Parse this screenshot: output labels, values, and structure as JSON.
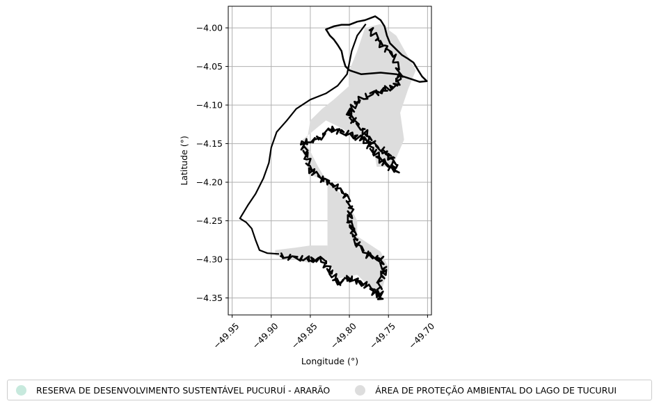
{
  "chart_data": {
    "type": "map",
    "xlabel": "Longitude (°)",
    "ylabel": "Latitude (°)",
    "xlim": [
      -49.955,
      -49.695
    ],
    "ylim": [
      -4.372,
      -3.972
    ],
    "x_ticks": [
      -49.95,
      -49.9,
      -49.85,
      -49.8,
      -49.75,
      -49.7
    ],
    "x_tick_labels": [
      "−49.95",
      "−49.90",
      "−49.85",
      "−49.80",
      "−49.75",
      "−49.70"
    ],
    "y_ticks": [
      -4.0,
      -4.05,
      -4.1,
      -4.15,
      -4.2,
      -4.25,
      -4.3,
      -4.35
    ],
    "y_tick_labels": [
      "−4.00",
      "−4.05",
      "−4.10",
      "−4.15",
      "−4.20",
      "−4.25",
      "−4.30",
      "−4.35"
    ],
    "grid": true,
    "legend_position": "bottom",
    "legend": [
      {
        "label": "RESERVA DE DESENVOLVIMENTO SUSTENTÁVEL PUCURUÍ - ARARÃO",
        "color": "#c7e9dd"
      },
      {
        "label": "ÁREA DE PROTEÇÃO AMBIENTAL DO LAGO DE TUCURUI",
        "color": "#dddddd"
      }
    ],
    "boundary_outline": [
      [
        -49.767,
        -3.985
      ],
      [
        -49.76,
        -3.99
      ],
      [
        -49.755,
        -3.998
      ],
      [
        -49.752,
        -4.01
      ],
      [
        -49.748,
        -4.02
      ],
      [
        -49.74,
        -4.028
      ],
      [
        -49.733,
        -4.035
      ],
      [
        -49.725,
        -4.04
      ],
      [
        -49.718,
        -4.045
      ],
      [
        -49.712,
        -4.055
      ],
      [
        -49.707,
        -4.063
      ],
      [
        -49.701,
        -4.069
      ],
      [
        -49.71,
        -4.07
      ],
      [
        -49.725,
        -4.065
      ],
      [
        -49.74,
        -4.06
      ],
      [
        -49.76,
        -4.058
      ],
      [
        -49.785,
        -4.06
      ],
      [
        -49.8,
        -4.055
      ],
      [
        -49.805,
        -4.05
      ],
      [
        -49.808,
        -4.04
      ],
      [
        -49.81,
        -4.03
      ],
      [
        -49.815,
        -4.022
      ],
      [
        -49.82,
        -4.015
      ],
      [
        -49.825,
        -4.01
      ],
      [
        -49.828,
        -4.005
      ],
      [
        -49.83,
        -4.002
      ],
      [
        -49.82,
        -3.998
      ],
      [
        -49.81,
        -3.996
      ],
      [
        -49.8,
        -3.996
      ],
      [
        -49.79,
        -3.992
      ],
      [
        -49.78,
        -3.99
      ],
      [
        -49.767,
        -3.985
      ]
    ],
    "reservoir_west_shore": [
      [
        -49.779,
        -3.995
      ],
      [
        -49.79,
        -4.01
      ],
      [
        -49.797,
        -4.03
      ],
      [
        -49.8,
        -4.045
      ],
      [
        -49.803,
        -4.06
      ],
      [
        -49.815,
        -4.075
      ],
      [
        -49.83,
        -4.085
      ],
      [
        -49.85,
        -4.093
      ],
      [
        -49.868,
        -4.105
      ],
      [
        -49.88,
        -4.12
      ],
      [
        -49.893,
        -4.135
      ],
      [
        -49.9,
        -4.155
      ],
      [
        -49.903,
        -4.175
      ],
      [
        -49.91,
        -4.195
      ],
      [
        -49.92,
        -4.215
      ],
      [
        -49.93,
        -4.23
      ],
      [
        -49.94,
        -4.247
      ],
      [
        -49.932,
        -4.252
      ],
      [
        -49.925,
        -4.26
      ],
      [
        -49.92,
        -4.275
      ],
      [
        -49.915,
        -4.288
      ],
      [
        -49.905,
        -4.292
      ],
      [
        -49.89,
        -4.293
      ]
    ],
    "apa_area": [
      [
        -49.8,
        -4.055
      ],
      [
        -49.79,
        -4.03
      ],
      [
        -49.78,
        -4.0
      ],
      [
        -49.76,
        -3.995
      ],
      [
        -49.74,
        -4.01
      ],
      [
        -49.715,
        -4.055
      ],
      [
        -49.725,
        -4.08
      ],
      [
        -49.735,
        -4.11
      ],
      [
        -49.73,
        -4.145
      ],
      [
        -49.745,
        -4.18
      ],
      [
        -49.765,
        -4.18
      ],
      [
        -49.77,
        -4.15
      ],
      [
        -49.795,
        -4.14
      ],
      [
        -49.81,
        -4.13
      ],
      [
        -49.83,
        -4.12
      ],
      [
        -49.86,
        -4.145
      ],
      [
        -49.86,
        -4.16
      ],
      [
        -49.85,
        -4.19
      ],
      [
        -49.828,
        -4.2
      ],
      [
        -49.805,
        -4.22
      ],
      [
        -49.79,
        -4.25
      ],
      [
        -49.79,
        -4.27
      ],
      [
        -49.76,
        -4.29
      ],
      [
        -49.75,
        -4.31
      ],
      [
        -49.76,
        -4.345
      ],
      [
        -49.775,
        -4.335
      ],
      [
        -49.79,
        -4.32
      ],
      [
        -49.815,
        -4.325
      ],
      [
        -49.828,
        -4.3
      ],
      [
        -49.828,
        -4.2
      ],
      [
        -49.84,
        -4.18
      ],
      [
        -49.855,
        -4.15
      ],
      [
        -49.85,
        -4.12
      ],
      [
        -49.835,
        -4.105
      ],
      [
        -49.82,
        -4.093
      ],
      [
        -49.8,
        -4.075
      ]
    ],
    "apa_south_arm": [
      [
        -49.895,
        -4.288
      ],
      [
        -49.87,
        -4.285
      ],
      [
        -49.85,
        -4.282
      ],
      [
        -49.828,
        -4.282
      ],
      [
        -49.828,
        -4.3
      ],
      [
        -49.85,
        -4.305
      ],
      [
        -49.87,
        -4.3
      ],
      [
        -49.895,
        -4.295
      ]
    ],
    "islands_and_shores": [
      [
        -49.775,
        -4.0
      ],
      [
        -49.76,
        -4.02
      ],
      [
        -49.745,
        -4.035
      ],
      [
        -49.735,
        -4.06
      ],
      [
        -49.74,
        -4.075
      ],
      [
        -49.755,
        -4.08
      ],
      [
        -49.77,
        -4.085
      ],
      [
        -49.79,
        -4.095
      ],
      [
        -49.8,
        -4.11
      ],
      [
        -49.795,
        -4.12
      ],
      [
        -49.78,
        -4.135
      ],
      [
        -49.77,
        -4.15
      ],
      [
        -49.755,
        -4.16
      ],
      [
        -49.745,
        -4.17
      ],
      [
        -49.74,
        -4.185
      ],
      [
        -49.75,
        -4.18
      ],
      [
        -49.76,
        -4.17
      ],
      [
        -49.77,
        -4.16
      ],
      [
        -49.78,
        -4.145
      ],
      [
        -49.795,
        -4.14
      ],
      [
        -49.81,
        -4.135
      ],
      [
        -49.825,
        -4.13
      ],
      [
        -49.84,
        -4.145
      ],
      [
        -49.86,
        -4.148
      ],
      [
        -49.855,
        -4.165
      ],
      [
        -49.85,
        -4.185
      ],
      [
        -49.835,
        -4.195
      ],
      [
        -49.82,
        -4.205
      ],
      [
        -49.805,
        -4.215
      ],
      [
        -49.798,
        -4.235
      ],
      [
        -49.8,
        -4.25
      ],
      [
        -49.795,
        -4.265
      ],
      [
        -49.79,
        -4.28
      ],
      [
        -49.775,
        -4.295
      ],
      [
        -49.76,
        -4.3
      ],
      [
        -49.755,
        -4.315
      ],
      [
        -49.762,
        -4.33
      ],
      [
        -49.76,
        -4.35
      ],
      [
        -49.77,
        -4.34
      ],
      [
        -49.785,
        -4.33
      ],
      [
        -49.8,
        -4.325
      ],
      [
        -49.815,
        -4.33
      ],
      [
        -49.825,
        -4.315
      ],
      [
        -49.835,
        -4.3
      ],
      [
        -49.85,
        -4.3
      ],
      [
        -49.87,
        -4.298
      ],
      [
        -49.89,
        -4.295
      ]
    ]
  }
}
